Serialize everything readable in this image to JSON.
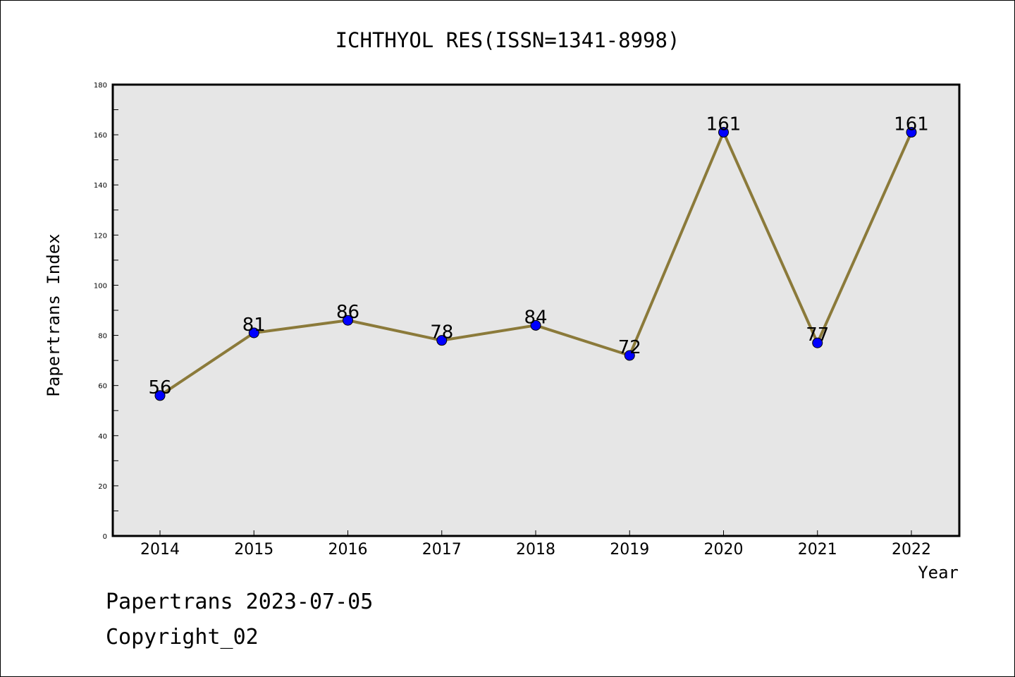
{
  "chart_data": {
    "type": "line",
    "title": "ICHTHYOL RES(ISSN=1341-8998)",
    "xlabel": "Year",
    "ylabel": "Papertrans Index",
    "categories": [
      "2014",
      "2015",
      "2016",
      "2017",
      "2018",
      "2019",
      "2020",
      "2021",
      "2022"
    ],
    "series": [
      {
        "values": [
          56,
          81,
          86,
          78,
          84,
          72,
          161,
          77,
          161
        ]
      }
    ],
    "data_labels": [
      "56",
      "81",
      "86",
      "78",
      "84",
      "72",
      "161",
      "77",
      "161"
    ],
    "ylim": [
      0,
      180
    ],
    "y_ticks": [
      "0",
      "20",
      "40",
      "60",
      "80",
      "100",
      "120",
      "140",
      "160",
      "180"
    ],
    "grid": false,
    "legend": "none",
    "colors": {
      "line": "#8b7a3a",
      "marker": "#0000ff",
      "plot_background": "#e6e6e6"
    }
  },
  "footer": {
    "date_line": "Papertrans 2023-07-05",
    "copyright_line": "Copyright_02"
  }
}
